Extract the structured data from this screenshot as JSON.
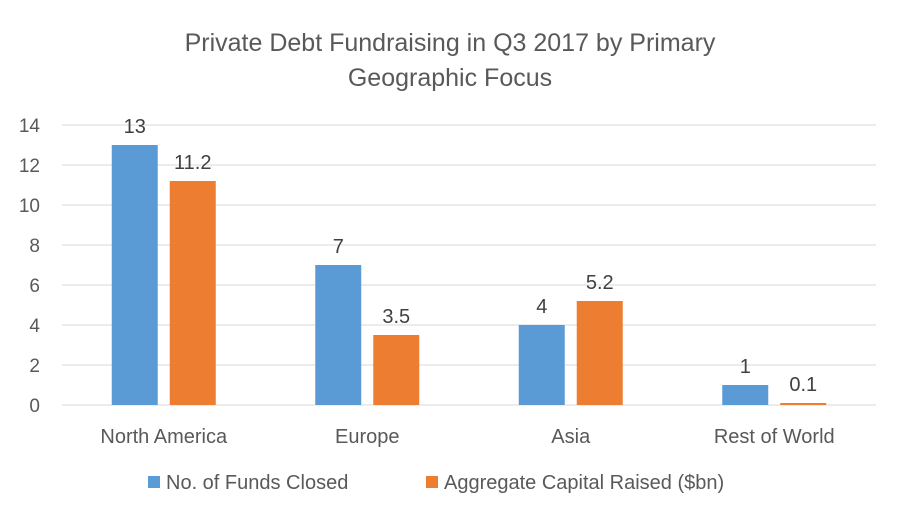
{
  "chart_data": {
    "type": "bar",
    "title_lines": [
      "Private Debt Fundraising in Q3 2017 by Primary",
      "Geographic Focus"
    ],
    "categories": [
      "North America",
      "Europe",
      "Asia",
      "Rest of World"
    ],
    "series": [
      {
        "name": "No. of Funds Closed",
        "color": "#5b9bd5",
        "values": [
          13,
          7,
          4,
          1
        ],
        "labels": [
          "13",
          "7",
          "4",
          "1"
        ]
      },
      {
        "name": "Aggregate Capital Raised ($bn)",
        "color": "#ed7d31",
        "values": [
          11.2,
          3.5,
          5.2,
          0.1
        ],
        "labels": [
          "11.2",
          "3.5",
          "5.2",
          "0.1"
        ]
      }
    ],
    "ylim": [
      0,
      14
    ],
    "yticks": [
      0,
      2,
      4,
      6,
      8,
      10,
      12,
      14
    ],
    "ytick_labels": [
      "0",
      "2",
      "4",
      "6",
      "8",
      "10",
      "12",
      "14"
    ],
    "grid": true,
    "legend_position": "bottom"
  }
}
